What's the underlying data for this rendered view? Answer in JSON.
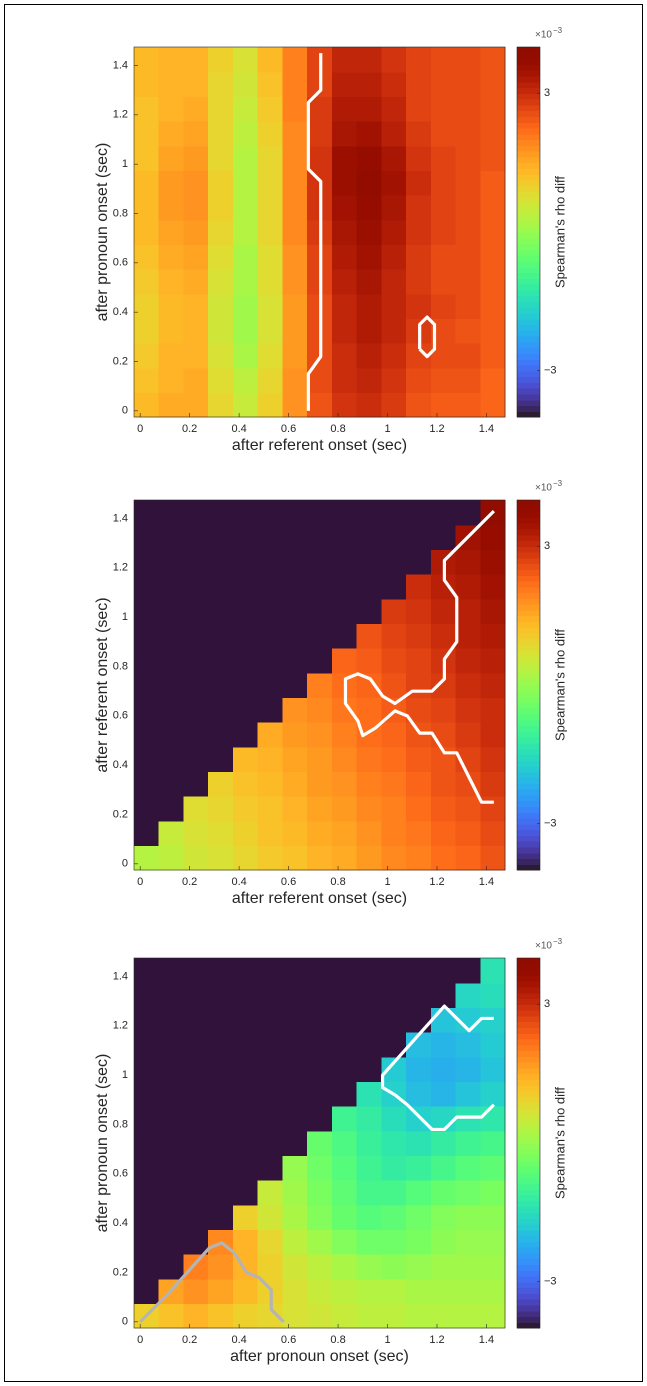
{
  "chart_data": [
    {
      "type": "heatmap",
      "xlabel": "after referent onset (sec)",
      "ylabel": "after pronoun onset (sec)",
      "x": [
        0.025,
        0.125,
        0.225,
        0.325,
        0.425,
        0.525,
        0.625,
        0.725,
        0.825,
        0.925,
        1.025,
        1.125,
        1.225,
        1.325,
        1.425
      ],
      "y": [
        0.025,
        0.125,
        0.225,
        0.325,
        0.425,
        0.525,
        0.625,
        0.725,
        0.825,
        0.925,
        1.025,
        1.125,
        1.225,
        1.325,
        1.425
      ],
      "values": [
        [
          1.3,
          1.5,
          1.5,
          0.9,
          0.5,
          1.0,
          1.8,
          2.5,
          2.9,
          3.0,
          2.8,
          2.5,
          2.4,
          2.4,
          2.3
        ],
        [
          1.2,
          1.4,
          1.5,
          0.8,
          0.4,
          0.9,
          1.8,
          2.6,
          3.0,
          3.1,
          2.9,
          2.6,
          2.5,
          2.5,
          2.3
        ],
        [
          1.1,
          1.4,
          1.4,
          0.7,
          0.2,
          0.8,
          1.7,
          2.6,
          3.0,
          3.2,
          3.0,
          2.7,
          2.6,
          2.6,
          2.4
        ],
        [
          1.0,
          1.3,
          1.4,
          0.6,
          0.1,
          0.7,
          1.7,
          2.6,
          3.1,
          3.3,
          3.1,
          2.8,
          2.6,
          2.5,
          2.4
        ],
        [
          1.0,
          1.3,
          1.4,
          0.6,
          0.1,
          0.7,
          1.7,
          2.6,
          3.1,
          3.3,
          3.1,
          2.9,
          2.7,
          2.6,
          2.4
        ],
        [
          1.1,
          1.4,
          1.5,
          0.7,
          0.2,
          0.8,
          1.8,
          2.7,
          3.2,
          3.4,
          3.1,
          2.8,
          2.6,
          2.6,
          2.4
        ],
        [
          1.2,
          1.5,
          1.6,
          0.8,
          0.2,
          0.8,
          1.8,
          2.7,
          3.3,
          3.5,
          3.2,
          2.8,
          2.6,
          2.6,
          2.4
        ],
        [
          1.3,
          1.6,
          1.7,
          0.9,
          0.3,
          0.9,
          1.9,
          2.8,
          3.4,
          3.6,
          3.3,
          2.9,
          2.7,
          2.6,
          2.4
        ],
        [
          1.3,
          1.7,
          1.8,
          1.0,
          0.3,
          0.9,
          1.9,
          2.9,
          3.5,
          3.7,
          3.4,
          2.9,
          2.7,
          2.6,
          2.4
        ],
        [
          1.3,
          1.7,
          1.8,
          1.0,
          0.3,
          0.9,
          1.9,
          2.9,
          3.6,
          3.8,
          3.5,
          3.0,
          2.7,
          2.6,
          2.4
        ],
        [
          1.2,
          1.6,
          1.7,
          0.9,
          0.3,
          0.9,
          1.9,
          2.9,
          3.6,
          3.7,
          3.4,
          2.9,
          2.7,
          2.6,
          2.5
        ],
        [
          1.2,
          1.5,
          1.6,
          0.9,
          0.4,
          1.0,
          1.9,
          2.8,
          3.4,
          3.5,
          3.2,
          2.8,
          2.6,
          2.6,
          2.5
        ],
        [
          1.2,
          1.4,
          1.5,
          0.9,
          0.5,
          1.1,
          2.0,
          2.8,
          3.3,
          3.3,
          3.1,
          2.7,
          2.6,
          2.6,
          2.5
        ],
        [
          1.3,
          1.4,
          1.4,
          0.9,
          0.6,
          1.2,
          2.0,
          2.7,
          3.2,
          3.2,
          3.0,
          2.7,
          2.6,
          2.6,
          2.5
        ],
        [
          1.3,
          1.4,
          1.4,
          1.0,
          0.7,
          1.3,
          2.0,
          2.7,
          3.1,
          3.1,
          2.9,
          2.7,
          2.6,
          2.6,
          2.5
        ]
      ],
      "cmap": "turbo",
      "clim": [
        -4,
        4
      ],
      "mask_color": "#30123b",
      "xlim": [
        -0.025,
        1.475
      ],
      "ylim": [
        -0.025,
        1.475
      ],
      "xticks": [
        0,
        0.2,
        0.4,
        0.6,
        0.8,
        1,
        1.2,
        1.4
      ],
      "yticks": [
        0,
        0.2,
        0.4,
        0.6,
        0.8,
        1,
        1.2,
        1.4
      ],
      "colorbar_ticks": [
        {
          "value": -3,
          "label": "−3"
        },
        3
      ],
      "colorbar_label": "Spearman's rho diff",
      "colorbar_multiplier": "×10",
      "colorbar_exponent": "−3",
      "contours": [
        {
          "color": "#ffffff",
          "x": [
            0.68,
            0.68,
            0.73,
            0.73,
            0.68,
            0.68,
            0.73,
            0.73
          ],
          "y": [
            0,
            0.15,
            0.22,
            0.93,
            0.98,
            1.25,
            1.3,
            1.45
          ]
        },
        {
          "color": "#ffffff",
          "x": [
            1.13,
            1.13,
            1.16,
            1.19,
            1.19,
            1.16,
            1.13
          ],
          "y": [
            0.25,
            0.35,
            0.38,
            0.35,
            0.25,
            0.22,
            0.25
          ]
        }
      ]
    },
    {
      "type": "heatmap",
      "xlabel": "after referent onset (sec)",
      "ylabel": "after referent onset (sec)",
      "x": [
        0.025,
        0.125,
        0.225,
        0.325,
        0.425,
        0.525,
        0.625,
        0.725,
        0.825,
        0.925,
        1.025,
        1.125,
        1.225,
        1.325,
        1.425
      ],
      "y": [
        0.025,
        0.125,
        0.225,
        0.325,
        0.425,
        0.525,
        0.625,
        0.725,
        0.825,
        0.925,
        1.025,
        1.125,
        1.225,
        1.325,
        1.425
      ],
      "values": [
        [
          0.3,
          0.4,
          0.6,
          0.7,
          0.9,
          1.1,
          1.2,
          1.4,
          1.5,
          1.7,
          1.9,
          2.0,
          2.2,
          2.3,
          2.5
        ],
        [
          null,
          0.5,
          0.7,
          0.8,
          1.0,
          1.2,
          1.3,
          1.5,
          1.6,
          1.8,
          2.0,
          2.1,
          2.3,
          2.4,
          2.6
        ],
        [
          null,
          null,
          0.8,
          0.9,
          1.1,
          1.2,
          1.4,
          1.6,
          1.7,
          1.9,
          2.0,
          2.2,
          2.4,
          2.5,
          2.7
        ],
        [
          null,
          null,
          null,
          1.0,
          1.2,
          1.3,
          1.5,
          1.7,
          1.8,
          2.0,
          2.1,
          2.3,
          2.5,
          2.6,
          2.8
        ],
        [
          null,
          null,
          null,
          null,
          1.3,
          1.4,
          1.6,
          1.7,
          1.9,
          2.1,
          2.2,
          2.4,
          2.5,
          2.7,
          2.9
        ],
        [
          null,
          null,
          null,
          null,
          null,
          1.5,
          1.7,
          1.8,
          2.0,
          2.2,
          2.3,
          2.5,
          2.6,
          2.8,
          3.0
        ],
        [
          null,
          null,
          null,
          null,
          null,
          null,
          1.8,
          1.9,
          2.1,
          2.2,
          2.4,
          2.6,
          2.7,
          2.9,
          3.0
        ],
        [
          null,
          null,
          null,
          null,
          null,
          null,
          null,
          2.0,
          2.2,
          2.3,
          2.5,
          2.7,
          2.8,
          3.0,
          3.1
        ],
        [
          null,
          null,
          null,
          null,
          null,
          null,
          null,
          null,
          2.3,
          2.4,
          2.6,
          2.7,
          2.9,
          3.1,
          3.2
        ],
        [
          null,
          null,
          null,
          null,
          null,
          null,
          null,
          null,
          null,
          2.5,
          2.7,
          2.8,
          3.0,
          3.2,
          3.3
        ],
        [
          null,
          null,
          null,
          null,
          null,
          null,
          null,
          null,
          null,
          null,
          2.8,
          2.9,
          3.1,
          3.2,
          3.4
        ],
        [
          null,
          null,
          null,
          null,
          null,
          null,
          null,
          null,
          null,
          null,
          null,
          3.0,
          3.2,
          3.3,
          3.5
        ],
        [
          null,
          null,
          null,
          null,
          null,
          null,
          null,
          null,
          null,
          null,
          null,
          null,
          3.3,
          3.4,
          3.6
        ],
        [
          null,
          null,
          null,
          null,
          null,
          null,
          null,
          null,
          null,
          null,
          null,
          null,
          null,
          3.5,
          3.7
        ],
        [
          null,
          null,
          null,
          null,
          null,
          null,
          null,
          null,
          null,
          null,
          null,
          null,
          null,
          null,
          3.8
        ]
      ],
      "cmap": "turbo",
      "clim": [
        -4,
        4
      ],
      "mask_color": "#30123b",
      "xlim": [
        -0.025,
        1.475
      ],
      "ylim": [
        -0.025,
        1.475
      ],
      "xticks": [
        0,
        0.2,
        0.4,
        0.6,
        0.8,
        1,
        1.2,
        1.4
      ],
      "yticks": [
        0,
        0.2,
        0.4,
        0.6,
        0.8,
        1,
        1.2,
        1.4
      ],
      "colorbar_ticks": [
        {
          "value": -3,
          "label": "−3"
        },
        3
      ],
      "colorbar_label": "Spearman's rho diff",
      "colorbar_multiplier": "×10",
      "colorbar_exponent": "−3",
      "contours": [
        {
          "color": "#ffffff",
          "x": [
            1.43,
            1.23,
            1.23,
            1.28,
            1.28,
            1.23,
            1.23,
            1.18,
            1.1,
            1.03,
            0.98,
            0.93,
            0.88,
            0.83,
            0.83,
            0.88,
            0.9,
            0.95,
            1.03,
            1.08,
            1.13,
            1.18,
            1.23,
            1.28,
            1.33,
            1.38,
            1.43
          ],
          "y": [
            1.43,
            1.23,
            1.15,
            1.08,
            0.9,
            0.83,
            0.75,
            0.7,
            0.7,
            0.65,
            0.68,
            0.75,
            0.77,
            0.75,
            0.65,
            0.58,
            0.52,
            0.55,
            0.62,
            0.6,
            0.53,
            0.53,
            0.45,
            0.45,
            0.35,
            0.25,
            0.25
          ]
        }
      ]
    },
    {
      "type": "heatmap",
      "xlabel": "after pronoun onset (sec)",
      "ylabel": "after pronoun onset (sec)",
      "x": [
        0.025,
        0.125,
        0.225,
        0.325,
        0.425,
        0.525,
        0.625,
        0.725,
        0.825,
        0.925,
        1.025,
        1.125,
        1.225,
        1.325,
        1.425
      ],
      "y": [
        0.025,
        0.125,
        0.225,
        0.325,
        0.425,
        0.525,
        0.625,
        0.725,
        0.825,
        0.925,
        1.025,
        1.125,
        1.225,
        1.325,
        1.425
      ],
      "values": [
        [
          1.0,
          1.2,
          1.4,
          1.2,
          1.0,
          0.9,
          0.7,
          0.6,
          0.5,
          0.4,
          0.4,
          0.3,
          0.3,
          0.3,
          0.3
        ],
        [
          null,
          1.6,
          1.8,
          1.6,
          1.3,
          1.0,
          0.7,
          0.5,
          0.4,
          0.3,
          0.3,
          0.2,
          0.2,
          0.2,
          0.2
        ],
        [
          null,
          null,
          2.0,
          1.8,
          1.4,
          1.0,
          0.6,
          0.4,
          0.2,
          0.0,
          -0.1,
          0.0,
          0.1,
          0.1,
          0.1
        ],
        [
          null,
          null,
          null,
          1.9,
          1.4,
          0.9,
          0.4,
          0.1,
          -0.2,
          -0.4,
          -0.4,
          -0.3,
          -0.1,
          0.0,
          0.0
        ],
        [
          null,
          null,
          null,
          null,
          1.0,
          0.6,
          0.2,
          -0.2,
          -0.5,
          -0.7,
          -0.6,
          -0.4,
          -0.2,
          -0.1,
          -0.1
        ],
        [
          null,
          null,
          null,
          null,
          null,
          0.5,
          0.1,
          -0.3,
          -0.6,
          -0.9,
          -0.9,
          -0.7,
          -0.5,
          -0.4,
          -0.3
        ],
        [
          null,
          null,
          null,
          null,
          null,
          null,
          0.0,
          -0.4,
          -0.7,
          -1.0,
          -1.2,
          -1.1,
          -0.9,
          -0.7,
          -0.6
        ],
        [
          null,
          null,
          null,
          null,
          null,
          null,
          null,
          -0.5,
          -0.8,
          -1.1,
          -1.3,
          -1.4,
          -1.2,
          -1.0,
          -0.9
        ],
        [
          null,
          null,
          null,
          null,
          null,
          null,
          null,
          null,
          -1.0,
          -1.2,
          -1.5,
          -1.7,
          -1.6,
          -1.4,
          -1.3
        ],
        [
          null,
          null,
          null,
          null,
          null,
          null,
          null,
          null,
          null,
          -1.4,
          -1.7,
          -2.0,
          -2.1,
          -1.9,
          -1.7
        ],
        [
          null,
          null,
          null,
          null,
          null,
          null,
          null,
          null,
          null,
          null,
          -1.8,
          -2.1,
          -2.2,
          -2.1,
          -1.9
        ],
        [
          null,
          null,
          null,
          null,
          null,
          null,
          null,
          null,
          null,
          null,
          null,
          -2.0,
          -2.1,
          -2.0,
          -1.8
        ],
        [
          null,
          null,
          null,
          null,
          null,
          null,
          null,
          null,
          null,
          null,
          null,
          null,
          -1.9,
          -1.8,
          -1.7
        ],
        [
          null,
          null,
          null,
          null,
          null,
          null,
          null,
          null,
          null,
          null,
          null,
          null,
          null,
          -1.6,
          -1.5
        ],
        [
          null,
          null,
          null,
          null,
          null,
          null,
          null,
          null,
          null,
          null,
          null,
          null,
          null,
          null,
          -1.4
        ]
      ],
      "cmap": "turbo",
      "clim": [
        -4,
        4
      ],
      "mask_color": "#30123b",
      "xlim": [
        -0.025,
        1.475
      ],
      "ylim": [
        -0.025,
        1.475
      ],
      "xticks": [
        0,
        0.2,
        0.4,
        0.6,
        0.8,
        1,
        1.2,
        1.4
      ],
      "yticks": [
        0,
        0.2,
        0.4,
        0.6,
        0.8,
        1,
        1.2,
        1.4
      ],
      "colorbar_ticks": [
        {
          "value": -3,
          "label": "−3"
        },
        3
      ],
      "colorbar_label": "Spearman's rho diff",
      "colorbar_multiplier": "×10",
      "colorbar_exponent": "−3",
      "contours": [
        {
          "color": "#ffffff",
          "x": [
            1.43,
            1.38,
            1.33,
            1.28,
            1.23,
            0.98,
            0.98,
            1.03,
            1.08,
            1.13,
            1.18,
            1.23,
            1.28,
            1.38,
            1.43
          ],
          "y": [
            1.23,
            1.23,
            1.18,
            1.23,
            1.28,
            1.0,
            0.95,
            0.92,
            0.88,
            0.83,
            0.78,
            0.78,
            0.83,
            0.83,
            0.88
          ]
        },
        {
          "color": "#b4b4b4",
          "x": [
            0,
            0.1,
            0.28,
            0.33,
            0.38,
            0.43,
            0.48,
            0.53,
            0.53,
            0.58
          ],
          "y": [
            0,
            0.1,
            0.3,
            0.32,
            0.28,
            0.2,
            0.18,
            0.13,
            0.05,
            0
          ]
        }
      ]
    }
  ]
}
